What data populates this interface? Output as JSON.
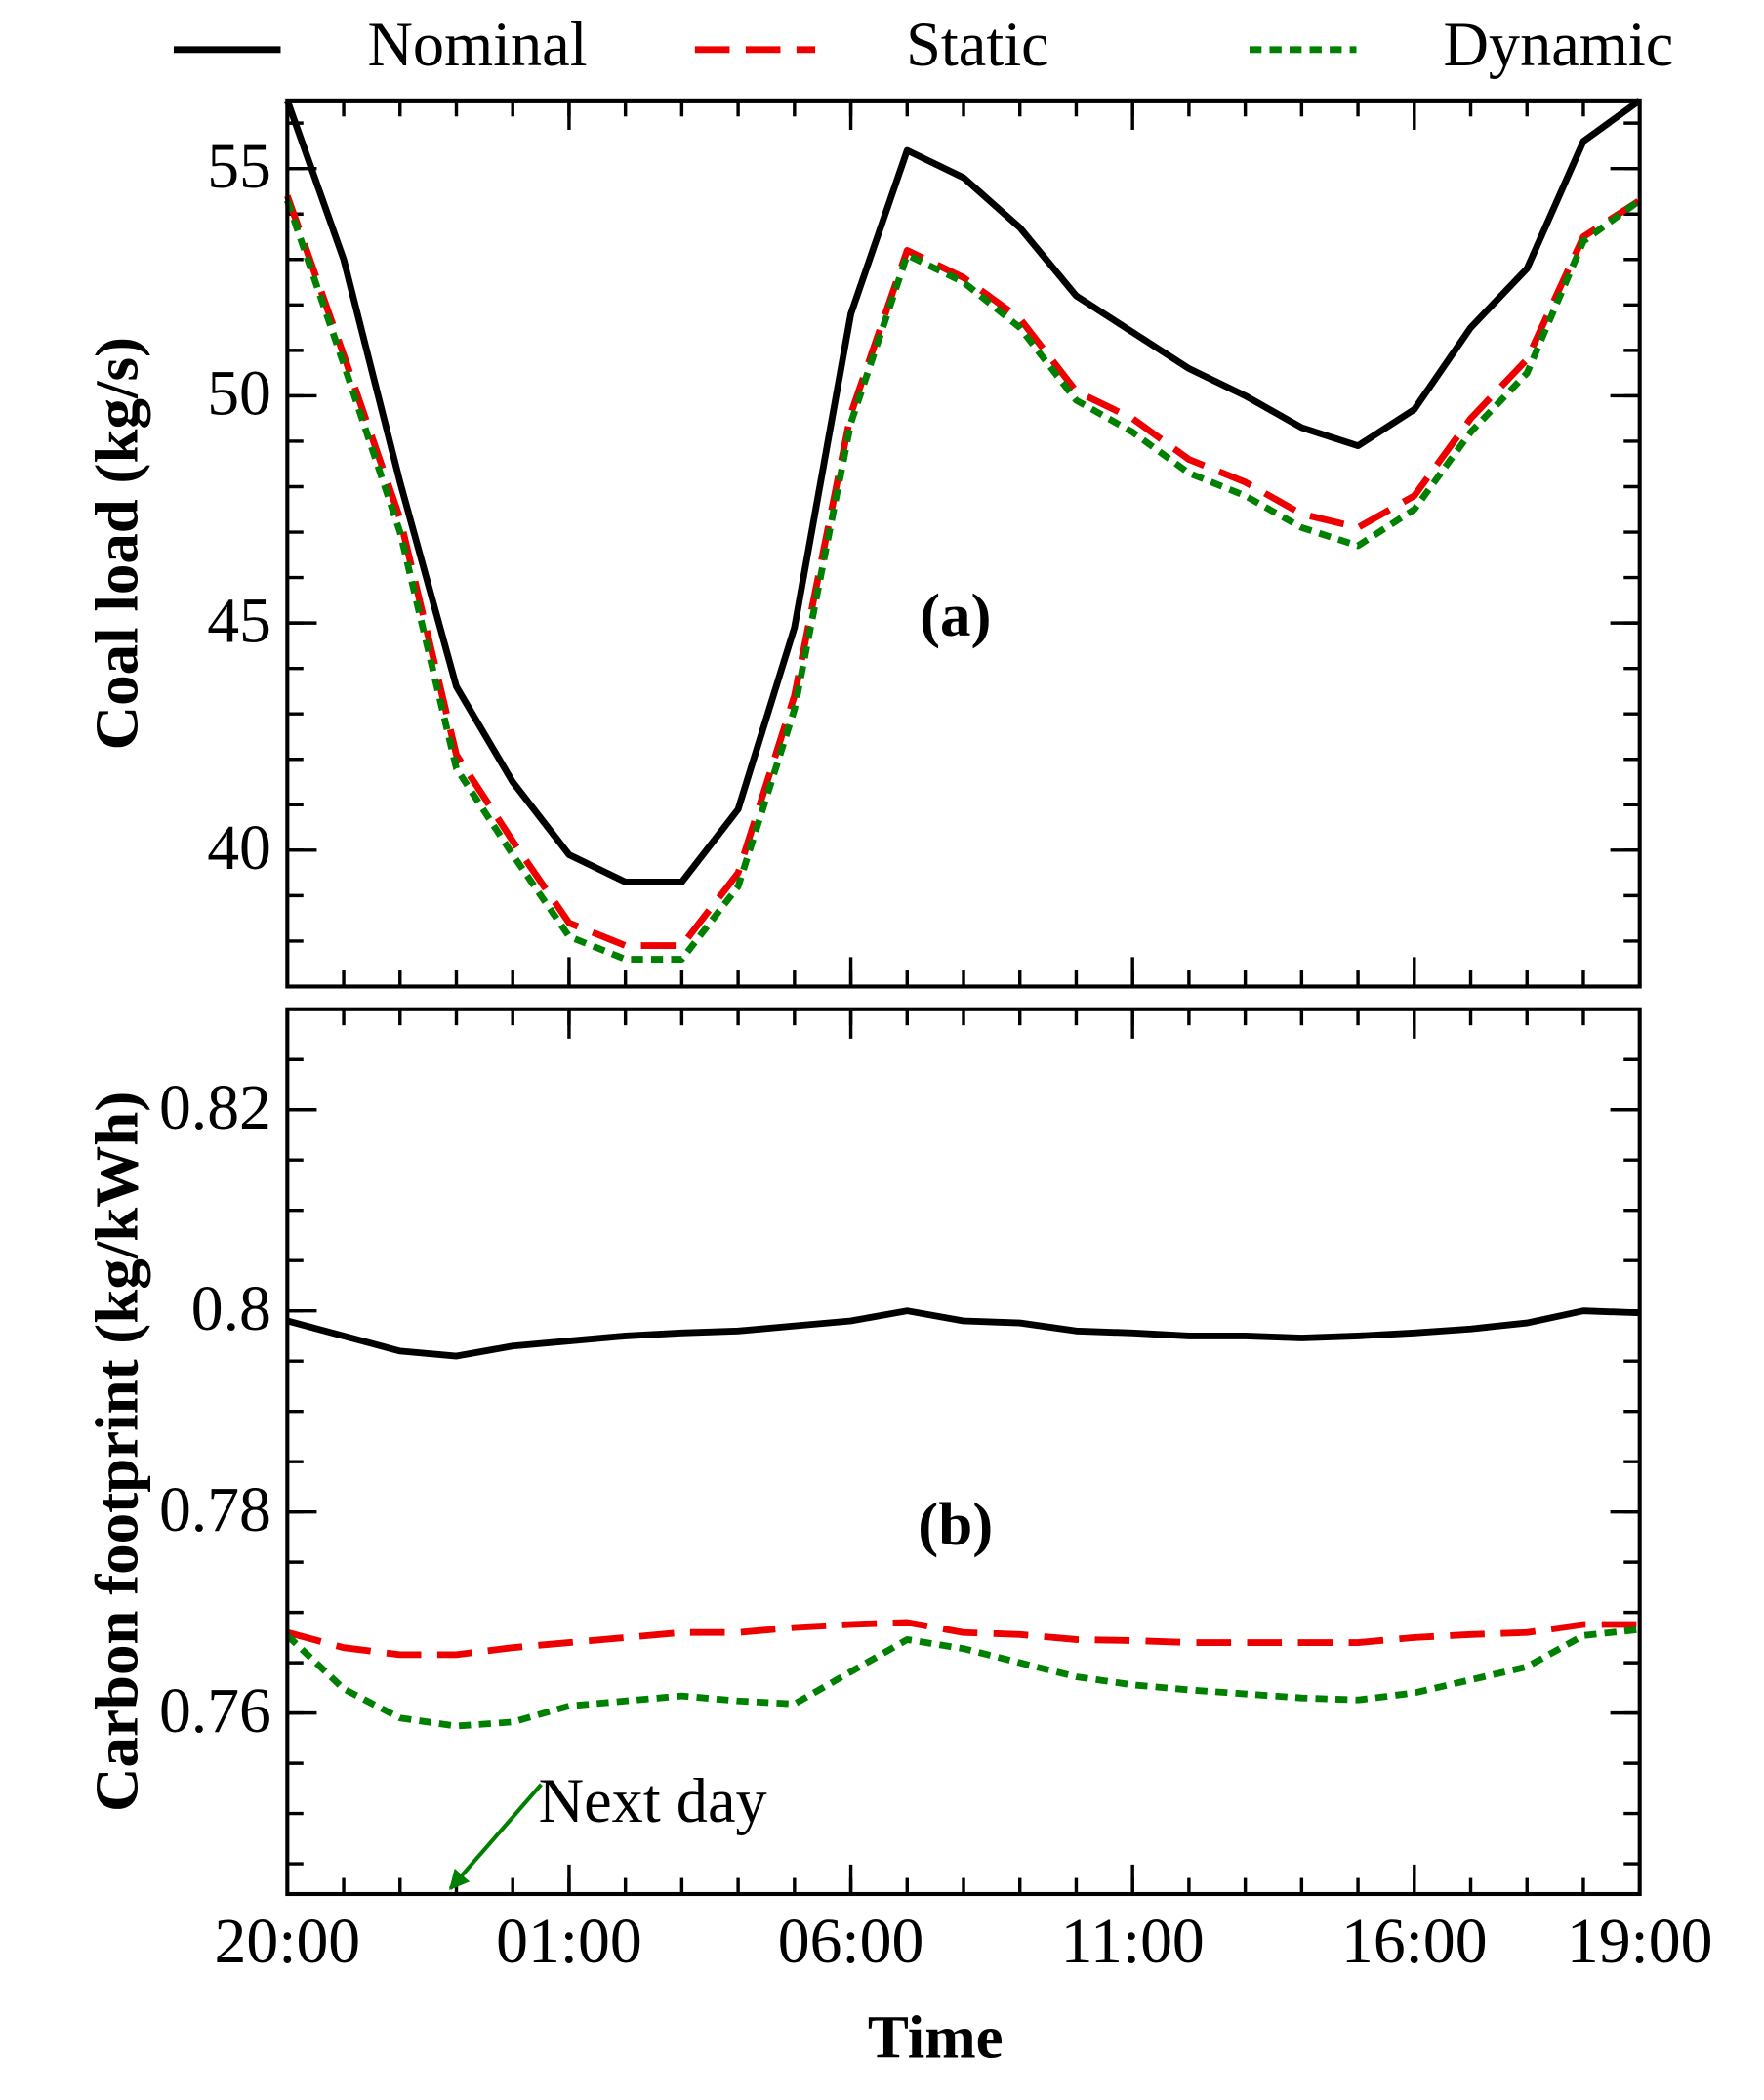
{
  "chart_data": [
    {
      "type": "line",
      "ylabel": "Coal load (kg/s)",
      "annotation": "(a)",
      "legend": "top",
      "x": [
        0,
        1,
        2,
        3,
        4,
        5,
        6,
        7,
        8,
        9,
        10,
        11,
        12,
        13,
        14,
        15,
        16,
        17,
        18,
        19,
        20,
        21,
        22,
        23,
        24
      ],
      "xlim": [
        0,
        24
      ],
      "xticks": [
        0,
        5,
        10,
        15,
        20,
        24
      ],
      "ylim": [
        37,
        56.5
      ],
      "yticks": [
        40,
        45,
        50,
        55
      ],
      "series": [
        {
          "name": "Nominal",
          "color": "#000000",
          "style": "solid",
          "values": [
            56.5,
            53.0,
            48.1,
            43.6,
            41.5,
            39.9,
            39.3,
            39.3,
            40.9,
            44.9,
            51.8,
            55.4,
            54.8,
            53.7,
            52.2,
            51.4,
            50.6,
            50.0,
            49.3,
            48.9,
            49.7,
            51.5,
            52.8,
            55.6,
            56.5
          ]
        },
        {
          "name": "Static",
          "color": "#ee0000",
          "style": "dashed",
          "values": [
            54.4,
            50.9,
            47.3,
            42.1,
            40.2,
            38.4,
            37.9,
            37.9,
            39.5,
            43.4,
            49.6,
            53.2,
            52.6,
            51.7,
            50.1,
            49.5,
            48.6,
            48.1,
            47.4,
            47.1,
            47.8,
            49.5,
            50.8,
            53.5,
            54.3
          ]
        },
        {
          "name": "Dynamic",
          "color": "#008000",
          "style": "dotted",
          "values": [
            54.3,
            50.7,
            47.0,
            41.8,
            39.9,
            38.1,
            37.6,
            37.6,
            39.2,
            43.1,
            49.4,
            53.1,
            52.5,
            51.5,
            49.9,
            49.2,
            48.3,
            47.8,
            47.1,
            46.7,
            47.5,
            49.2,
            50.5,
            53.4,
            54.3
          ]
        }
      ]
    },
    {
      "type": "line",
      "ylabel": "Carbon footprint (kg/kWh)",
      "xlabel": "Time",
      "annotation": "(b)",
      "note": "Next day",
      "x": [
        0,
        1,
        2,
        3,
        4,
        5,
        6,
        7,
        8,
        9,
        10,
        11,
        12,
        13,
        14,
        15,
        16,
        17,
        18,
        19,
        20,
        21,
        22,
        23,
        24
      ],
      "xlim": [
        0,
        24
      ],
      "xticks": [
        {
          "value": 0,
          "label": "20:00"
        },
        {
          "value": 5,
          "label": "01:00"
        },
        {
          "value": 10,
          "label": "06:00"
        },
        {
          "value": 15,
          "label": "11:00"
        },
        {
          "value": 20,
          "label": "16:00"
        },
        {
          "value": 24,
          "label": "19:00"
        }
      ],
      "ylim": [
        0.742,
        0.83
      ],
      "yticks": [
        0.76,
        0.78,
        {
          "value": 0.8,
          "label": "0.8"
        },
        0.82
      ],
      "series": [
        {
          "color": "#000000",
          "style": "solid",
          "values": [
            0.799,
            0.7975,
            0.796,
            0.7955,
            0.7965,
            0.797,
            0.7975,
            0.7978,
            0.798,
            0.7985,
            0.799,
            0.8,
            0.799,
            0.7988,
            0.798,
            0.7978,
            0.7975,
            0.7975,
            0.7973,
            0.7975,
            0.7978,
            0.7982,
            0.7988,
            0.8,
            0.7998
          ]
        },
        {
          "color": "#ee0000",
          "style": "dashed",
          "values": [
            0.768,
            0.7665,
            0.7658,
            0.7658,
            0.7665,
            0.767,
            0.7675,
            0.768,
            0.768,
            0.7685,
            0.7688,
            0.769,
            0.768,
            0.7678,
            0.7673,
            0.7672,
            0.767,
            0.767,
            0.767,
            0.767,
            0.7675,
            0.7678,
            0.768,
            0.7688,
            0.7688
          ]
        },
        {
          "color": "#008000",
          "style": "dotted",
          "values": [
            0.7677,
            0.7624,
            0.7595,
            0.7587,
            0.7591,
            0.7607,
            0.7612,
            0.7617,
            0.7612,
            0.7609,
            0.7641,
            0.7673,
            0.7664,
            0.765,
            0.7636,
            0.7628,
            0.7623,
            0.7619,
            0.7615,
            0.7613,
            0.762,
            0.7633,
            0.7646,
            0.7677,
            0.7683
          ]
        }
      ]
    }
  ]
}
